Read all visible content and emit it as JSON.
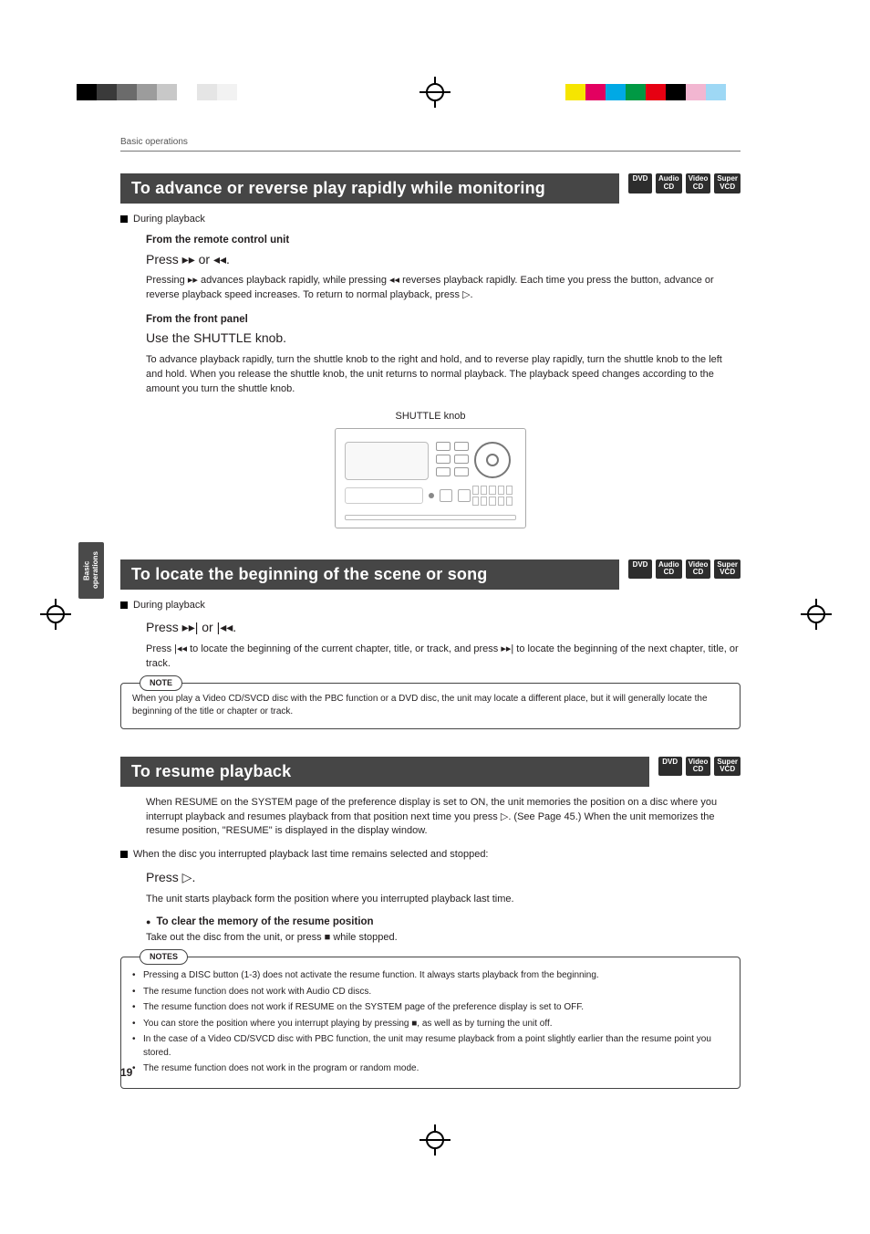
{
  "print_bars": {
    "left_colors": [
      "#000000",
      "#3a3a3a",
      "#6b6b6b",
      "#9c9c9c",
      "#c8c8c8",
      "#ffffff",
      "#e5e5e5",
      "#f2f2f2"
    ],
    "right_colors": [
      "#f6e500",
      "#e30060",
      "#00a9e5",
      "#009944",
      "#e60012",
      "#000000",
      "#f2b6d1",
      "#9ed8f5"
    ]
  },
  "running_head": "Basic operations",
  "side_tab": "Basic\noperations",
  "page_number": "19",
  "badges": {
    "dvd": "DVD",
    "audio_cd": {
      "top": "Audio",
      "bot": "CD"
    },
    "video_cd": {
      "top": "Video",
      "bot": "CD"
    },
    "super_vcd": {
      "top": "Super",
      "bot": "VCD"
    }
  },
  "sec1": {
    "title": "To advance or reverse play rapidly while monitoring",
    "during": "During playback",
    "remote_h": "From the remote control unit",
    "remote_cmd": "Press ▸▸ or ◂◂.",
    "remote_para": "Pressing ▸▸ advances playback rapidly, while pressing ◂◂ reverses playback rapidly.  Each time you press the button, advance or reverse playback speed increases. To return to normal playback, press ▷.",
    "front_h": "From the front panel",
    "front_cmd": "Use the SHUTTLE knob.",
    "front_para": "To advance playback rapidly, turn the shuttle knob to the right and hold, and to reverse play rapidly, turn the shuttle knob to the left and hold. When you release the shuttle knob, the unit returns to normal playback. The playback speed changes according to the amount you turn the shuttle knob.",
    "fig_caption": "SHUTTLE knob"
  },
  "sec2": {
    "title": "To locate the beginning of the scene or song",
    "during": "During playback",
    "cmd": "Press ▸▸| or |◂◂.",
    "para": "Press |◂◂ to locate the beginning of the current chapter, title, or track, and press ▸▸| to locate the beginning of the next chapter, title, or track.",
    "note_label": "NOTE",
    "note_body": "When you play a Video CD/SVCD disc with the PBC function or a DVD disc, the unit may locate a different place, but it will generally locate the beginning of the title or chapter or track."
  },
  "sec3": {
    "title": "To resume playback",
    "intro": "When RESUME on the SYSTEM page of the preference display is set to ON, the unit memories the position on a disc where you interrupt playback and resumes playback from that position next time you press ▷. (See Page 45.) When the unit memorizes the resume position, \"RESUME\" is displayed in the display window.",
    "when_line": "When the disc you interrupted playback last time remains selected and stopped:",
    "cmd": "Press ▷.",
    "after_cmd": "The unit starts playback form the position where you interrupted playback last time.",
    "clear_h": "To clear the memory of the resume position",
    "clear_body": "Take out the disc from the unit, or press ■ while stopped.",
    "notes_label": "NOTES",
    "notes": [
      "Pressing a DISC button (1-3) does not activate the resume function. It always starts playback from the beginning.",
      "The resume function does not work with Audio CD discs.",
      "The resume function does not work if RESUME on the SYSTEM page of the preference display is set to OFF.",
      "You can store the position where you interrupt playing by pressing ■, as well as by turning the unit off.",
      "In the case of a Video CD/SVCD disc with PBC function, the unit may resume playback from a point slightly earlier than the resume point you stored.",
      "The resume function does not work in the program or random mode."
    ]
  }
}
